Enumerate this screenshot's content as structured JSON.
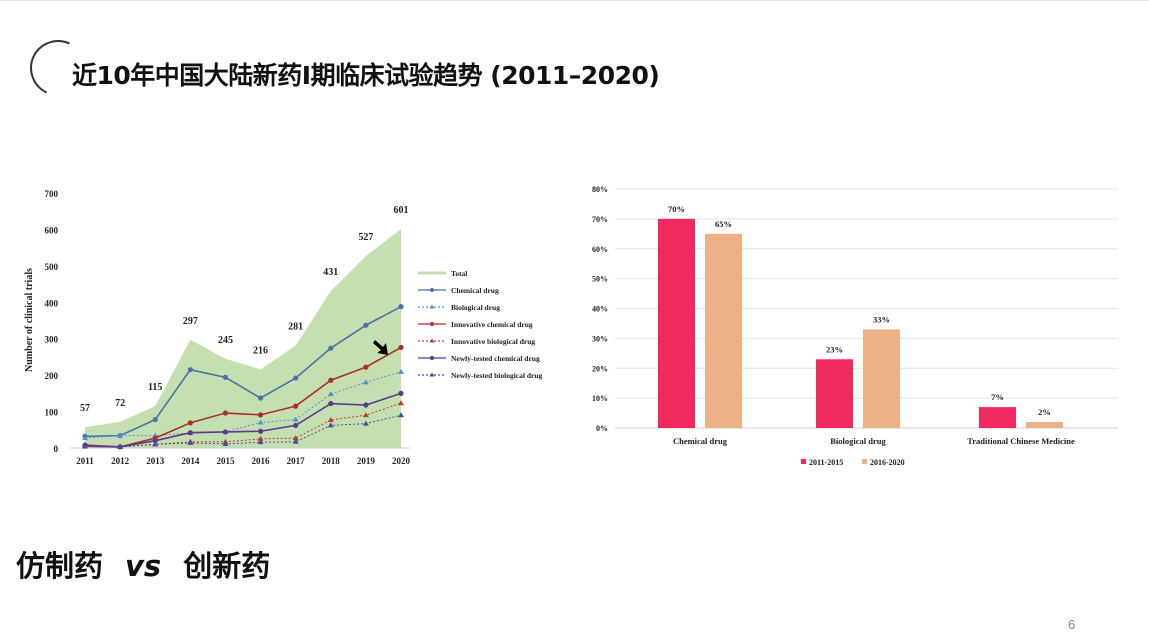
{
  "slide": {
    "title": "近10年中国大陆新药I期临床试验趋势 (2011–2020)",
    "subtitle_left": "仿制药",
    "subtitle_vs": "vs",
    "subtitle_right": "创新药",
    "page_number": "6"
  },
  "chart_data": [
    {
      "type": "line",
      "ylabel": "Number of clinical trials",
      "xlabel": "",
      "ylim": [
        0,
        700
      ],
      "yticks": [
        "0",
        "100",
        "200",
        "300",
        "400",
        "500",
        "600",
        "700"
      ],
      "x": [
        "2011",
        "2012",
        "2013",
        "2014",
        "2015",
        "2016",
        "2017",
        "2018",
        "2019",
        "2020"
      ],
      "legend_position": "right",
      "total": {
        "name": "Total",
        "color": "#c5e0b0",
        "values": [
          57,
          72,
          115,
          297,
          245,
          216,
          281,
          431,
          527,
          601
        ],
        "labels": [
          "57",
          "72",
          "115",
          "297",
          "245",
          "216",
          "281",
          "431",
          "527",
          "601"
        ]
      },
      "series": [
        {
          "name": "Chemical drug",
          "color": "#4a72a8",
          "dash": false,
          "marker": "circle",
          "values": [
            32,
            34,
            78,
            215,
            194,
            137,
            192,
            274,
            337,
            388
          ]
        },
        {
          "name": "Biological drug",
          "color": "#5b8fc9",
          "dash": true,
          "marker": "triangle",
          "values": [
            27,
            34,
            34,
            41,
            44,
            70,
            78,
            148,
            180,
            209
          ]
        },
        {
          "name": "Innovative chemical drug",
          "color": "#a8302a",
          "dash": false,
          "marker": "circle",
          "values": [
            5,
            3,
            27,
            69,
            96,
            91,
            115,
            186,
            222,
            276
          ]
        },
        {
          "name": "Innovative biological drug",
          "color": "#b5402f",
          "dash": true,
          "marker": "triangle",
          "values": [
            5,
            3,
            10,
            17,
            17,
            25,
            27,
            77,
            90,
            123
          ]
        },
        {
          "name": "Newly-tested chemical drug",
          "color": "#5a3a8a",
          "dash": false,
          "marker": "circle",
          "values": [
            8,
            3,
            20,
            42,
            44,
            46,
            62,
            122,
            118,
            150
          ]
        },
        {
          "name": "Newly-tested biological drug",
          "color": "#4a4aa0",
          "dash": true,
          "marker": "triangle",
          "values": [
            4,
            3,
            10,
            14,
            11,
            16,
            17,
            62,
            67,
            90
          ]
        }
      ]
    },
    {
      "type": "bar",
      "categories": [
        "Chemical drug",
        "Biological drug",
        "Traditional Chinese Medicine"
      ],
      "ylim": [
        0,
        80
      ],
      "yticks": [
        "0%",
        "10%",
        "20%",
        "30%",
        "40%",
        "50%",
        "60%",
        "70%",
        "80%"
      ],
      "grid": true,
      "legend_position": "bottom",
      "series": [
        {
          "name": "2011-2015",
          "color": "#f0295f",
          "values": [
            70,
            23,
            7
          ],
          "labels": [
            "70%",
            "23%",
            "7%"
          ]
        },
        {
          "name": "2016-2020",
          "color": "#eeb085",
          "values": [
            65,
            33,
            2
          ],
          "labels": [
            "65%",
            "33%",
            "2%"
          ]
        }
      ]
    }
  ]
}
